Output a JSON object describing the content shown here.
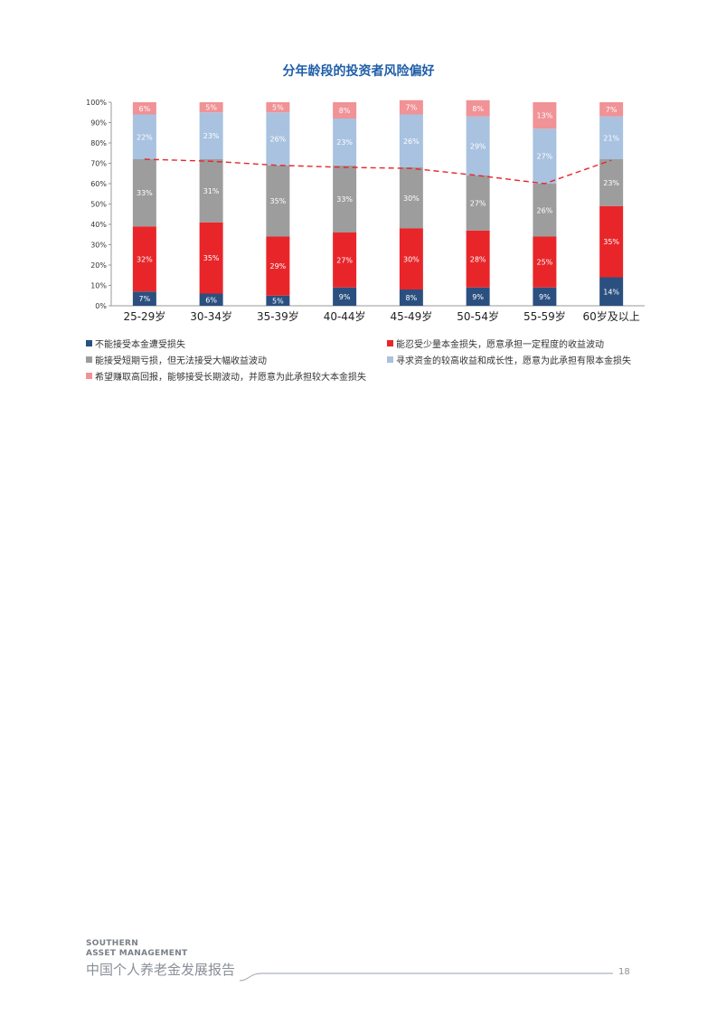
{
  "chart_data": {
    "type": "bar",
    "stacked": true,
    "title": "分年龄段的投资者风险偏好",
    "categories": [
      "25-29岁",
      "30-34岁",
      "35-39岁",
      "40-44岁",
      "45-49岁",
      "50-54岁",
      "55-59岁",
      "60岁及以上"
    ],
    "ylim": [
      0,
      100
    ],
    "yticks": [
      "0%",
      "10%",
      "20%",
      "30%",
      "40%",
      "50%",
      "60%",
      "70%",
      "80%",
      "90%",
      "100%"
    ],
    "series": [
      {
        "name": "不能接受本金遭受损失",
        "color": "#2b5080",
        "values": [
          7,
          6,
          5,
          9,
          8,
          9,
          9,
          14
        ],
        "labels": [
          "7%",
          "6%",
          "5%",
          "9%",
          "8%",
          "9%",
          "9%",
          "14%"
        ]
      },
      {
        "name": "能忍受少量本金损失，愿意承担一定程度的收益波动",
        "color": "#e8262a",
        "values": [
          32,
          35,
          29,
          27,
          30,
          28,
          25,
          35
        ],
        "labels": [
          "32%",
          "35%",
          "29%",
          "27%",
          "30%",
          "28%",
          "25%",
          "35%"
        ]
      },
      {
        "name": "能接受短期亏损，但无法接受大幅收益波动",
        "color": "#9d9d9d",
        "values": [
          33,
          31,
          35,
          33,
          30,
          27,
          26,
          23
        ],
        "labels": [
          "33%",
          "31%",
          "35%",
          "33%",
          "30%",
          "27%",
          "26%",
          "23%"
        ]
      },
      {
        "name": "寻求资金的较高收益和成长性，愿意为此承担有限本金损失",
        "color": "#a8c2e0",
        "values": [
          22,
          23,
          26,
          23,
          26,
          29,
          27,
          21
        ],
        "labels": [
          "22%",
          "23%",
          "26%",
          "23%",
          "26%",
          "29%",
          "27%",
          "21%"
        ]
      },
      {
        "name": "希望赚取高回报，能够接受长期波动，并愿意为此承担较大本金损失",
        "color": "#f09296",
        "values": [
          6,
          5,
          5,
          8,
          7,
          8,
          13,
          7
        ],
        "labels": [
          "6%",
          "5%",
          "5%",
          "8%",
          "7%",
          "8%",
          "13%",
          "7%"
        ]
      }
    ],
    "trend_line": {
      "style": "dashed",
      "color": "#e8262a",
      "values": [
        72,
        71,
        69,
        68,
        67.5,
        64,
        60,
        71.5
      ]
    },
    "grid": false,
    "legend_position": "bottom"
  },
  "footer": {
    "brand_line1": "SOUTHERN",
    "brand_line2": "ASSET MANAGEMENT",
    "report_title": "中国个人养老金发展报告",
    "page_number": "18"
  }
}
